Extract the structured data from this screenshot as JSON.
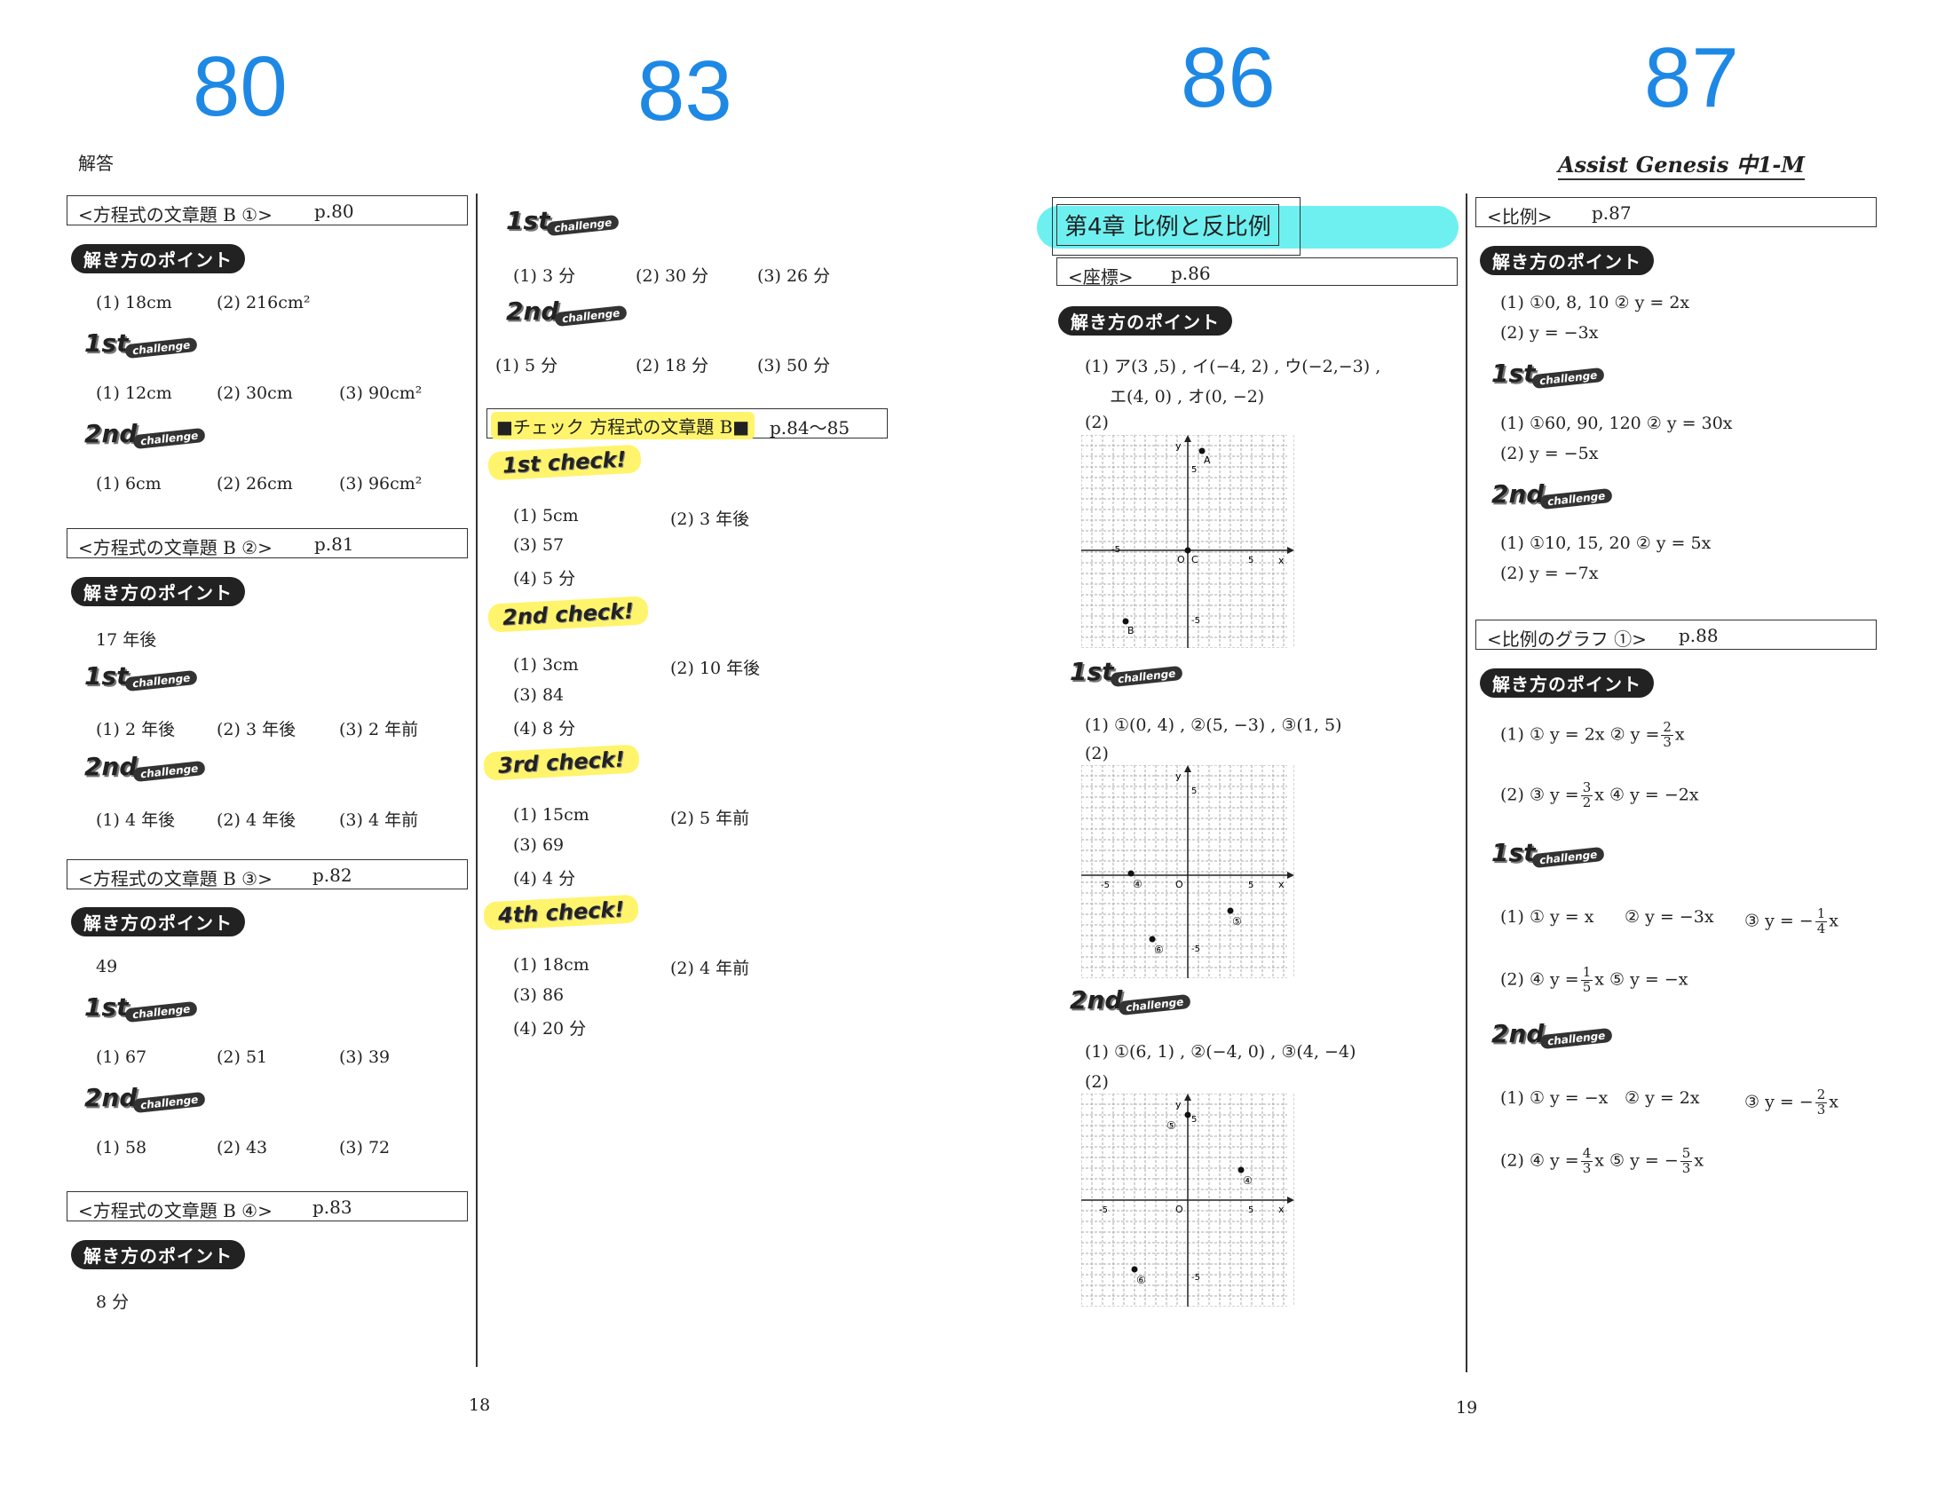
{
  "page_numbers_large": [
    "80",
    "83",
    "86",
    "87"
  ],
  "header": {
    "left_label": "解答",
    "brand": "Assist Genesis 中1-M"
  },
  "footer": {
    "left_page": "18",
    "right_page": "19"
  },
  "badges": {
    "point": "解き方のポイント",
    "first": "1st",
    "second": "2nd",
    "challenge": "challenge",
    "check1": "1st check!",
    "check2": "2nd check!",
    "check3": "3rd check!",
    "check4": "4th check!"
  },
  "col1": {
    "s1": {
      "title": "<方程式の文章題 B ①>",
      "page": "p.80",
      "point": [
        "(1) 18cm",
        "(2) 216cm²"
      ],
      "first": [
        "(1) 12cm",
        "(2) 30cm",
        "(3) 90cm²"
      ],
      "second": [
        "(1) 6cm",
        "(2) 26cm",
        "(3) 96cm²"
      ]
    },
    "s2": {
      "title": "<方程式の文章題 B ②>",
      "page": "p.81",
      "point": [
        "17 年後"
      ],
      "first": [
        "(1) 2 年後",
        "(2) 3 年後",
        "(3) 2 年前"
      ],
      "second": [
        "(1) 4 年後",
        "(2) 4 年後",
        "(3) 4 年前"
      ]
    },
    "s3": {
      "title": "<方程式の文章題 B ③>",
      "page": "p.82",
      "point": [
        "49"
      ],
      "first": [
        "(1) 67",
        "(2) 51",
        "(3) 39"
      ],
      "second": [
        "(1) 58",
        "(2) 43",
        "(3) 72"
      ]
    },
    "s4": {
      "title": "<方程式の文章題 B ④>",
      "page": "p.83",
      "point": [
        "8 分"
      ]
    }
  },
  "col2": {
    "first": [
      "(1) 3 分",
      "(2) 30 分",
      "(3) 26 分"
    ],
    "second": [
      "(1) 5 分",
      "(2) 18 分",
      "(3) 50 分"
    ],
    "check_title": "■チェック 方程式の文章題 B■",
    "check_page": "p.84〜85",
    "c1": [
      "(1) 5cm",
      "(2) 3 年後",
      "(3) 57",
      "(4) 5 分"
    ],
    "c2": [
      "(1) 3cm",
      "(2) 10 年後",
      "(3) 84",
      "(4) 8 分"
    ],
    "c3": [
      "(1) 15cm",
      "(2) 5 年前",
      "(3) 69",
      "(4) 4 分"
    ],
    "c4": [
      "(1) 18cm",
      "(2) 4 年前",
      "(3) 86",
      "(4) 20 分"
    ]
  },
  "col3": {
    "chapter": "第4章 比例と反比例",
    "title": "<座標>",
    "page": "p.86",
    "point1": "(1) ア(3 ,5) , イ(−4, 2) , ウ(−2,−3) ,",
    "point2": "エ(4, 0) , オ(0, −2)",
    "label2": "(2)",
    "first1": "(1) ①(0, 4) , ②(5, −3) , ③(1, 5)",
    "second1": "(1) ①(6, 1) , ②(−4, 0) , ③(4, −4)",
    "graph_labels": {
      "x": "x",
      "y": "y",
      "o": "O",
      "five": "5",
      "neg5": "-5",
      "A": "A",
      "B": "B",
      "C": "C",
      "p4": "④",
      "p5": "⑤",
      "p6": "⑥"
    }
  },
  "col4": {
    "s1": {
      "title": "<比例>",
      "page": "p.87",
      "point": [
        "(1) ①0, 8, 10 ② y = 2x",
        "(2) y = −3x"
      ],
      "first": [
        "(1) ①60, 90, 120 ② y = 30x",
        "(2) y = −5x"
      ],
      "second": [
        "(1) ①10, 15, 20 ② y = 5x",
        "(2) y = −7x"
      ]
    },
    "s2": {
      "title": "<比例のグラフ ①>",
      "page": "p.88",
      "point1": "(1) ① y = 2x ② y =",
      "point1_frac": [
        "2",
        "3"
      ],
      "point1_tail": "x",
      "point2": "(2) ③ y =",
      "point2_frac": [
        "3",
        "2"
      ],
      "point2_tail": "x ④ y = −2x",
      "first1a": "(1) ① y = x",
      "first1b": "② y = −3x",
      "first1c": "③ y = −",
      "first1c_frac": [
        "1",
        "4"
      ],
      "first1c_tail": "x",
      "first2a": "(2) ④ y =",
      "first2a_frac": [
        "1",
        "5"
      ],
      "first2a_tail": "x ⑤ y = −x",
      "second1a": "(1) ① y = −x",
      "second1b": "② y = 2x",
      "second1c": "③ y = −",
      "second1c_frac": [
        "2",
        "3"
      ],
      "second1c_tail": "x",
      "second2a": "(2) ④ y =",
      "second2a_frac": [
        "4",
        "3"
      ],
      "second2a_tail": "x ⑤ y = −",
      "second2b_frac": [
        "5",
        "3"
      ],
      "second2b_tail": "x"
    }
  }
}
